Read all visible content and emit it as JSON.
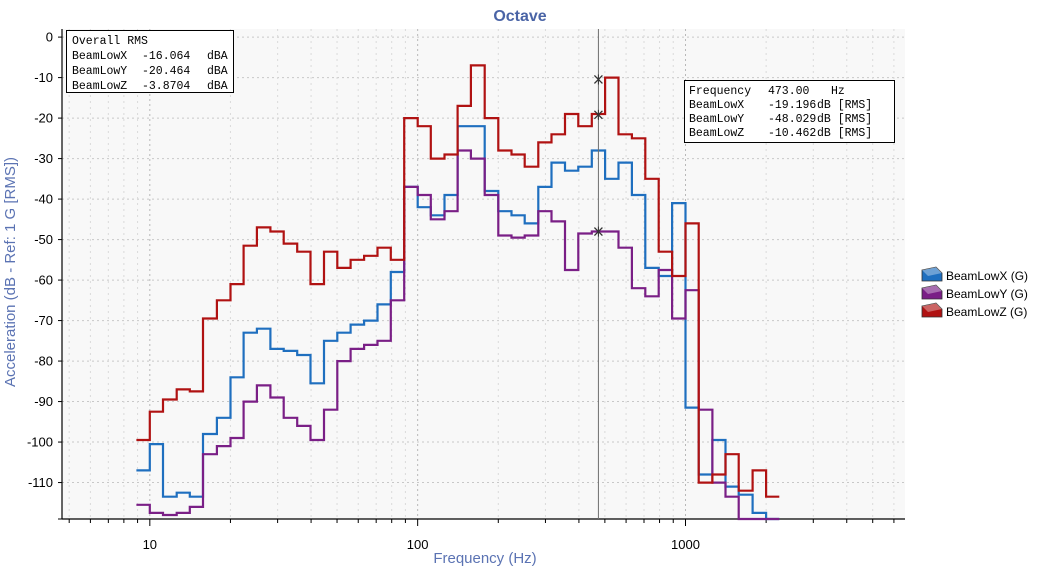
{
  "chart_data": {
    "type": "line",
    "title": "Octave",
    "xlabel": "Frequency (Hz)",
    "ylabel": "Acceleration (dB - Ref: 1 G [RMS])",
    "x_scale": "log",
    "xlim": [
      4.7,
      6600
    ],
    "ylim": [
      -119,
      2
    ],
    "x_ticks": [
      10,
      100,
      1000
    ],
    "y_ticks": [
      0,
      -10,
      -20,
      -30,
      -40,
      -50,
      -60,
      -70,
      -80,
      -90,
      -100,
      -110
    ],
    "grid": true,
    "legend_position": "right",
    "band_edges": [
      8.91,
      10,
      11.2,
      12.6,
      14.1,
      15.8,
      17.8,
      20,
      22.4,
      25.1,
      28.2,
      31.6,
      35.5,
      39.8,
      44.7,
      50.1,
      56.2,
      63.1,
      70.8,
      79.4,
      89.1,
      100,
      112,
      126,
      141,
      158,
      178,
      200,
      224,
      251,
      282,
      316,
      355,
      398,
      447,
      501,
      562,
      631,
      708,
      794,
      891,
      1000,
      1120,
      1260,
      1410,
      1580,
      1780,
      2000,
      2240
    ],
    "series": [
      {
        "name": "BeamLowX (G)",
        "color": "#1f6fbf",
        "values": [
          -107,
          -100.5,
          -113.5,
          -112.5,
          -113.5,
          -98,
          -94,
          -84,
          -73,
          -72,
          -77,
          -77.5,
          -78.5,
          -85.5,
          -75,
          -73,
          -71,
          -70,
          -66,
          -58,
          -37,
          -42,
          -44,
          -39,
          -22,
          -22,
          -38,
          -43,
          -44,
          -46,
          -37,
          -31,
          -33,
          -32,
          -28,
          -35,
          -31,
          -39,
          -57,
          -59,
          -41,
          -91.5,
          -108,
          -99.5,
          -111,
          -113,
          -117.5,
          -119
        ]
      },
      {
        "name": "BeamLowY (G)",
        "color": "#7a1f86",
        "values": [
          -115.5,
          -117.5,
          -118,
          -117.5,
          -116,
          -103,
          -101,
          -99,
          -90,
          -86,
          -89,
          -94,
          -96,
          -99.5,
          -92,
          -80,
          -77,
          -76,
          -75,
          -65,
          -37,
          -39,
          -45,
          -43,
          -28,
          -30,
          -39,
          -49,
          -49.5,
          -49,
          -43,
          -45.5,
          -57.5,
          -48.5,
          -48,
          -48,
          -52,
          -62,
          -64,
          -57.5,
          -69.5,
          -62.5,
          -92,
          -110,
          -113.5,
          -121,
          -121,
          -121
        ]
      },
      {
        "name": "BeamLowZ (G)",
        "color": "#b01212",
        "values": [
          -99.5,
          -92.5,
          -89.5,
          -87,
          -87.5,
          -69.5,
          -65,
          -61,
          -51.5,
          -47,
          -48,
          -51,
          -53,
          -61,
          -53,
          -57,
          -55,
          -54,
          -52,
          -55,
          -20,
          -22,
          -30,
          -29,
          -17,
          -7,
          -20,
          -28,
          -29,
          -32,
          -26,
          -24,
          -19,
          -22,
          -19,
          -10,
          -24,
          -25,
          -35,
          -53,
          -59,
          -46,
          -110,
          -108,
          -103,
          -112,
          -107,
          -113.5
        ]
      }
    ],
    "overall_rms": {
      "title": "Overall RMS",
      "rows": [
        {
          "name": "BeamLowX",
          "value": "-16.064",
          "unit": "dBA"
        },
        {
          "name": "BeamLowY",
          "value": "-20.464",
          "unit": "dBA"
        },
        {
          "name": "BeamLowZ",
          "value": "-3.8704",
          "unit": "dBA"
        }
      ]
    },
    "cursor": {
      "frequency": 473.0,
      "label": "Frequency",
      "frequency_text": "473.00",
      "unit": "Hz",
      "rows": [
        {
          "name": "BeamLowX",
          "value": -19.196,
          "value_text": "-19.196",
          "unit": "dB [RMS]"
        },
        {
          "name": "BeamLowY",
          "value": -48.029,
          "value_text": "-48.029",
          "unit": "dB [RMS]"
        },
        {
          "name": "BeamLowZ",
          "value": -10.462,
          "value_text": "-10.462",
          "unit": "dB [RMS]"
        }
      ]
    },
    "colors": {
      "title": "#4a64a6",
      "axis_title": "#5b73b3",
      "plot_bg": "#f8f8f8",
      "grid": "#c8c8c8"
    }
  }
}
